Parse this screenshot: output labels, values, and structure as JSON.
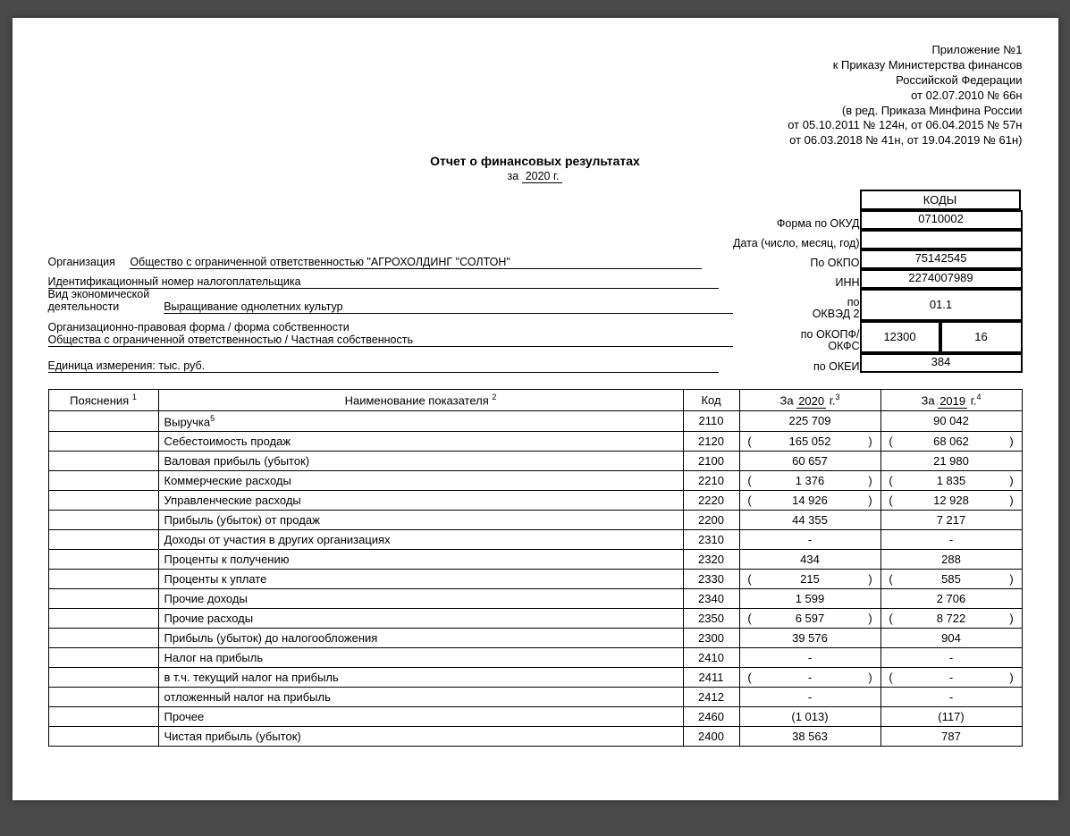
{
  "header_right": [
    "Приложение №1",
    "к Приказу Министерства финансов",
    "Российской Федерации",
    "от 02.07.2010 № 66н",
    "(в ред. Приказа Минфина России",
    "от 05.10.2011 № 124н, от 06.04.2015 № 57н",
    "от 06.03.2018 № 41н, от 19.04.2019 № 61н)"
  ],
  "title": "Отчет о финансовых результатах",
  "period_prefix": "за",
  "period_value": "2020 г.",
  "codes_header": "КОДЫ",
  "info": {
    "org_label": "Организация",
    "org_value": "Общество с ограниченной ответственностью \"АГРОХОЛДИНГ \"СОЛТОН\"",
    "okud_label": "Форма по ОКУД",
    "okud_code": "0710002",
    "date_label": "Дата (число, месяц, год)",
    "date_code": "",
    "okpo_label": "По ОКПО",
    "okpo_code": "75142545",
    "inn_label_line": "Идентификационный номер налогоплательщика",
    "inn_label": "ИНН",
    "inn_code": "2274007989",
    "activity_label": "Вид экономической\nдеятельности",
    "activity_value": "Выращивание однолетних культур",
    "okved_label_top": "по",
    "okved_label": "ОКВЭД 2",
    "okved_code": "01.1",
    "form_label": "Организационно-правовая форма / форма собственности",
    "form_value": "Общества с ограниченной ответственностью / Частная собственность",
    "okopf_label_top": "по ОКОПФ/",
    "okopf_label": "ОКФС",
    "okopf_code1": "12300",
    "okopf_code2": "16",
    "unit_label": "Единица измерения: тыс. руб.",
    "okei_label": "по ОКЕИ",
    "okei_code": "384"
  },
  "columns": {
    "expl": "Пояснения",
    "name": "Наименование показателя",
    "code": "Код",
    "year_cur_prefix": "За",
    "year_cur": "2020",
    "year_cur_suffix": "г.",
    "year_prev_prefix": "За",
    "year_prev": "2019",
    "year_prev_suffix": "г."
  },
  "rows": [
    {
      "name": "Выручка",
      "sup": "5",
      "code": "2110",
      "cur": "225 709",
      "cur_p": false,
      "prev": "90 042",
      "prev_p": false
    },
    {
      "name": "Себестоимость продаж",
      "code": "2120",
      "cur": "165 052",
      "cur_p": true,
      "prev": "68 062",
      "prev_p": true
    },
    {
      "name": "Валовая прибыль (убыток)",
      "code": "2100",
      "cur": "60 657",
      "cur_p": false,
      "prev": "21 980",
      "prev_p": false
    },
    {
      "name": "Коммерческие расходы",
      "code": "2210",
      "cur": "1 376",
      "cur_p": true,
      "prev": "1 835",
      "prev_p": true
    },
    {
      "name": "Управленческие расходы",
      "code": "2220",
      "cur": "14 926",
      "cur_p": true,
      "prev": "12 928",
      "prev_p": true
    },
    {
      "name": "Прибыль (убыток) от продаж",
      "code": "2200",
      "cur": "44 355",
      "cur_p": false,
      "prev": "7 217",
      "prev_p": false
    },
    {
      "name": "Доходы от участия в других организациях",
      "code": "2310",
      "cur": "-",
      "cur_p": false,
      "prev": "-",
      "prev_p": false
    },
    {
      "name": "Проценты к получению",
      "code": "2320",
      "cur": "434",
      "cur_p": false,
      "prev": "288",
      "prev_p": false
    },
    {
      "name": "Проценты к уплате",
      "code": "2330",
      "cur": "215",
      "cur_p": true,
      "prev": "585",
      "prev_p": true
    },
    {
      "name": "Прочие доходы",
      "code": "2340",
      "cur": "1 599",
      "cur_p": false,
      "prev": "2 706",
      "prev_p": false
    },
    {
      "name": "Прочие расходы",
      "code": "2350",
      "cur": "6 597",
      "cur_p": true,
      "prev": "8 722",
      "prev_p": true
    },
    {
      "name": "Прибыль (убыток) до налогообложения",
      "code": "2300",
      "cur": "39 576",
      "cur_p": false,
      "prev": "904",
      "prev_p": false
    },
    {
      "name": "Налог на прибыль",
      "code": "2410",
      "cur": "-",
      "cur_p": false,
      "prev": "-",
      "prev_p": false
    },
    {
      "name": "в т.ч. текущий налог на прибыль",
      "code": "2411",
      "cur": "-",
      "cur_p": true,
      "prev": "-",
      "prev_p": true
    },
    {
      "name": "отложенный налог на прибыль",
      "code": "2412",
      "cur": "-",
      "cur_p": false,
      "prev": "-",
      "prev_p": false
    },
    {
      "name": "Прочее",
      "code": "2460",
      "cur": "(1 013)",
      "cur_p": false,
      "prev": "(117)",
      "prev_p": false
    },
    {
      "name": "Чистая прибыль (убыток)",
      "code": "2400",
      "cur": "38 563",
      "cur_p": false,
      "prev": "787",
      "prev_p": false
    }
  ]
}
